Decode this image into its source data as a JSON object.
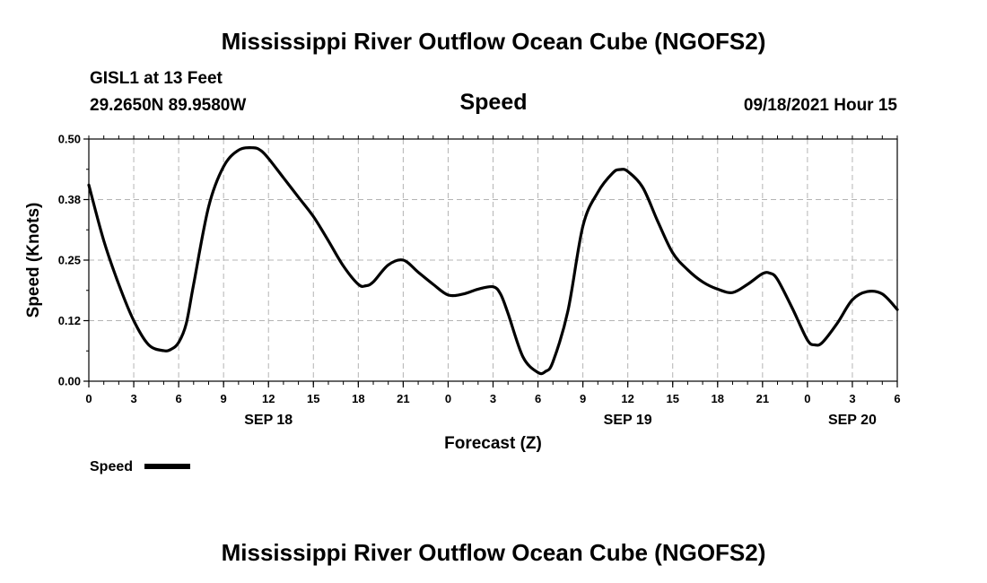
{
  "header": {
    "title": "Mississippi River Outflow Ocean Cube (NGOFS2)",
    "station": "GISL1 at 13 Feet",
    "coords": "29.2650N  89.9580W",
    "parameter": "Speed",
    "datetime": "09/18/2021 Hour 15"
  },
  "footer": {
    "title": "Mississippi River Outflow Ocean Cube (NGOFS2)"
  },
  "chart_data": {
    "type": "line",
    "title": "Speed",
    "xlabel": "Forecast (Z)",
    "ylabel": "Speed (Knots)",
    "ylim": [
      0,
      0.5
    ],
    "yticks": [
      0.0,
      0.125,
      0.25,
      0.375,
      0.5
    ],
    "ytick_labels": [
      "0.00",
      "0.12",
      "0.25",
      "0.38",
      "0.50"
    ],
    "xlim": [
      0,
      54
    ],
    "xticks": [
      0,
      3,
      6,
      9,
      12,
      15,
      18,
      21,
      24,
      27,
      30,
      33,
      36,
      39,
      42,
      45,
      48,
      51,
      54
    ],
    "xtick_labels": [
      "0",
      "3",
      "6",
      "9",
      "12",
      "15",
      "18",
      "21",
      "0",
      "3",
      "6",
      "9",
      "12",
      "15",
      "18",
      "21",
      "0",
      "3",
      "6"
    ],
    "date_labels": [
      {
        "x": 12,
        "text": "SEP 18"
      },
      {
        "x": 36,
        "text": "SEP 19"
      },
      {
        "x": 51,
        "text": "SEP 20"
      }
    ],
    "grid": true,
    "legend": "bottom-left",
    "series": [
      {
        "name": "Speed",
        "color": "#000000",
        "x": [
          0,
          1,
          2,
          3,
          4,
          5,
          5.5,
          6,
          6.5,
          7,
          8,
          9,
          10,
          11,
          11.5,
          12,
          13,
          14,
          15,
          16,
          17,
          18,
          18.5,
          19,
          20,
          21,
          22,
          23,
          24,
          25,
          26,
          27,
          27.5,
          28,
          29,
          30,
          30.5,
          31,
          32,
          33,
          34,
          35,
          35.5,
          36,
          37,
          38,
          39,
          40,
          41,
          42,
          43,
          44,
          45,
          45.5,
          46,
          47,
          48,
          48.5,
          49,
          50,
          51,
          52,
          53,
          54
        ],
        "y": [
          0.405,
          0.29,
          0.2,
          0.125,
          0.075,
          0.063,
          0.066,
          0.08,
          0.118,
          0.2,
          0.36,
          0.443,
          0.477,
          0.482,
          0.476,
          0.46,
          0.42,
          0.38,
          0.34,
          0.29,
          0.238,
          0.2,
          0.197,
          0.205,
          0.24,
          0.25,
          0.225,
          0.2,
          0.178,
          0.18,
          0.19,
          0.195,
          0.18,
          0.14,
          0.05,
          0.018,
          0.02,
          0.04,
          0.145,
          0.32,
          0.39,
          0.43,
          0.437,
          0.433,
          0.4,
          0.33,
          0.265,
          0.23,
          0.205,
          0.19,
          0.183,
          0.2,
          0.222,
          0.223,
          0.21,
          0.15,
          0.085,
          0.075,
          0.08,
          0.12,
          0.168,
          0.185,
          0.18,
          0.148
        ]
      }
    ]
  }
}
